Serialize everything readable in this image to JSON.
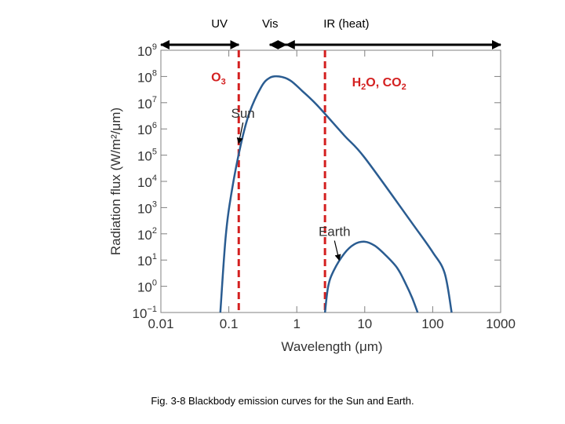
{
  "chart_data": {
    "type": "line",
    "title": "",
    "xlabel": "Wavelength (μm)",
    "ylabel": "Radiation flux (W/m²/μm)",
    "xscale": "log",
    "yscale": "log",
    "xlim": [
      0.01,
      1000
    ],
    "ylim_exponent": [
      -1,
      9
    ],
    "x_ticks": [
      0.01,
      0.1,
      1,
      10,
      100,
      1000
    ],
    "x_tick_labels": [
      "0.01",
      "0.1",
      "1",
      "10",
      "100",
      "1000"
    ],
    "y_tick_exponents": [
      9,
      8,
      7,
      6,
      5,
      4,
      3,
      2,
      1,
      0,
      -1
    ],
    "y_tick_base": "10",
    "y_tick_sups": [
      "9",
      "8",
      "7",
      "6",
      "5",
      "4",
      "3",
      "2",
      "1",
      "0",
      "−1"
    ],
    "series": [
      {
        "name": "Sun",
        "color": "#2a5c91",
        "points": [
          [
            0.075,
            -1
          ],
          [
            0.09,
            1.9
          ],
          [
            0.11,
            3.6
          ],
          [
            0.15,
            5.4
          ],
          [
            0.2,
            6.6
          ],
          [
            0.3,
            7.6
          ],
          [
            0.4,
            7.95
          ],
          [
            0.55,
            8.0
          ],
          [
            0.8,
            7.85
          ],
          [
            1.2,
            7.45
          ],
          [
            2,
            6.9
          ],
          [
            5,
            5.75
          ],
          [
            10,
            4.9
          ],
          [
            50,
            2.4
          ],
          [
            100,
            1.3
          ],
          [
            150,
            0.5
          ],
          [
            190,
            -1
          ]
        ]
      },
      {
        "name": "Earth",
        "color": "#2a5c91",
        "points": [
          [
            2.6,
            -1
          ],
          [
            2.9,
            0.0
          ],
          [
            3.5,
            0.6
          ],
          [
            5,
            1.25
          ],
          [
            7,
            1.6
          ],
          [
            10,
            1.7
          ],
          [
            14,
            1.55
          ],
          [
            20,
            1.2
          ],
          [
            30,
            0.7
          ],
          [
            40,
            0.1
          ],
          [
            50,
            -0.45
          ],
          [
            60,
            -1
          ]
        ]
      }
    ],
    "vertical_dividers": [
      {
        "x": 0.14,
        "color": "#d42020"
      },
      {
        "x": 2.6,
        "color": "#d42020"
      }
    ],
    "bands": [
      {
        "label": "UV",
        "from": 0.01,
        "to": 0.14
      },
      {
        "label": "Vis",
        "from": 0.4,
        "to": 0.7
      },
      {
        "label": "IR (heat)",
        "from": 0.7,
        "to": 1000
      }
    ],
    "annotations": [
      {
        "text": "Sun",
        "x": 0.09,
        "y": 6.6,
        "arrow_to": [
          0.14,
          5.45
        ]
      },
      {
        "text": "Earth",
        "x": 2.0,
        "y": 2.1,
        "arrow_to": [
          4.2,
          1.0
        ]
      }
    ],
    "absorbers": [
      {
        "base": "O",
        "sub": "3",
        "x": 0.055,
        "y": 8.0,
        "color": "#d42020"
      },
      {
        "base": "H",
        "sub": "2",
        "base2": "O, CO",
        "sub2": "2",
        "x": 6.5,
        "y": 7.8,
        "color": "#d42020"
      }
    ]
  },
  "caption": "Fig. 3-8 Blackbody emission curves for the Sun and Earth."
}
